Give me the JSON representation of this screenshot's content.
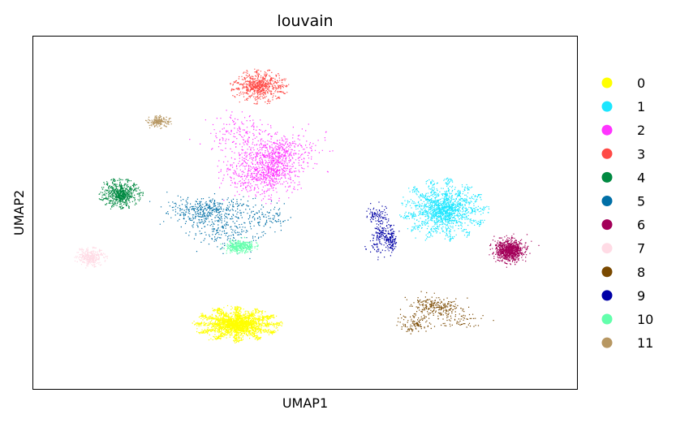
{
  "chart_data": {
    "type": "scatter",
    "title": "louvain",
    "xlabel": "UMAP1",
    "ylabel": "UMAP2",
    "xlim": [
      0,
      100
    ],
    "ylim": [
      0,
      100
    ],
    "grid": false,
    "ticks": false,
    "legend_position": "right",
    "series": [
      {
        "name": "0",
        "color": "#ffff00",
        "x": 37.5,
        "y": 18.5,
        "spread": [
          16,
          10
        ],
        "shape": "star",
        "density": 3000
      },
      {
        "name": "1",
        "color": "#1ce6ff",
        "x": 75.5,
        "y": 51.0,
        "spread": [
          16,
          18
        ],
        "shape": "star",
        "density": 1800
      },
      {
        "name": "2",
        "color": "#ff34ff",
        "x": 45.0,
        "y": 63.5,
        "spread": [
          20,
          21
        ],
        "shape": "patchy",
        "density": 1300
      },
      {
        "name": "3",
        "color": "#ff4a46",
        "x": 41.5,
        "y": 86.0,
        "spread": [
          11,
          10
        ],
        "shape": "star",
        "density": 700
      },
      {
        "name": "4",
        "color": "#008941",
        "x": 16.0,
        "y": 55.5,
        "spread": [
          8,
          9
        ],
        "shape": "star",
        "density": 650
      },
      {
        "name": "5",
        "color": "#006fa6",
        "x": 36.0,
        "y": 47.5,
        "spread": [
          20,
          15
        ],
        "shape": "patchy",
        "density": 700
      },
      {
        "name": "6",
        "color": "#a30059",
        "x": 87.5,
        "y": 39.5,
        "spread": [
          6,
          7
        ],
        "shape": "blob",
        "density": 900
      },
      {
        "name": "7",
        "color": "#ffdbe5",
        "x": 10.5,
        "y": 37.5,
        "spread": [
          6,
          6
        ],
        "shape": "star",
        "density": 350
      },
      {
        "name": "8",
        "color": "#7a4900",
        "x": 73.5,
        "y": 21.5,
        "spread": [
          13,
          9
        ],
        "shape": "patchy",
        "density": 400
      },
      {
        "name": "9",
        "color": "#0000a6",
        "x": 64.0,
        "y": 45.0,
        "spread": [
          5,
          12
        ],
        "shape": "patchy",
        "density": 350
      },
      {
        "name": "10",
        "color": "#63ffac",
        "x": 38.0,
        "y": 40.5,
        "spread": [
          6,
          4
        ],
        "shape": "blob",
        "density": 350
      },
      {
        "name": "11",
        "color": "#b79762",
        "x": 23.0,
        "y": 76.0,
        "spread": [
          5,
          4
        ],
        "shape": "star",
        "density": 200
      }
    ]
  }
}
